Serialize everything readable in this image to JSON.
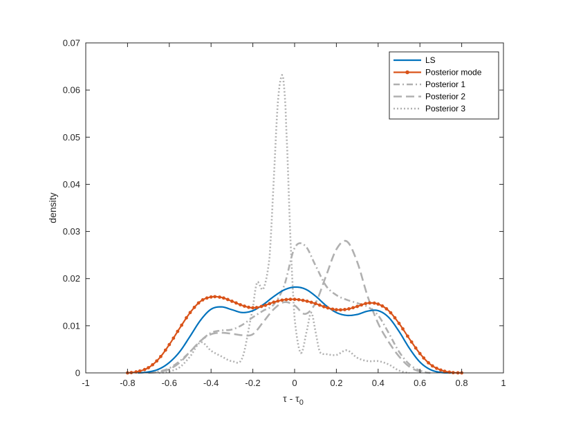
{
  "chart_data": {
    "type": "line",
    "title": "",
    "xlabel": "τ - τ",
    "xlabel_sub": "0",
    "ylabel": "density",
    "xlim": [
      -1,
      1
    ],
    "ylim": [
      0,
      0.07
    ],
    "xticks": [
      -1,
      -0.8,
      -0.6,
      -0.4,
      -0.2,
      0,
      0.2,
      0.4,
      0.6,
      0.8,
      1
    ],
    "xtick_labels": [
      "-1",
      "-0.8",
      "-0.6",
      "-0.4",
      "-0.2",
      "0",
      "0.2",
      "0.4",
      "0.6",
      "0.8",
      "1"
    ],
    "yticks": [
      0,
      0.01,
      0.02,
      0.03,
      0.04,
      0.05,
      0.06,
      0.07
    ],
    "ytick_labels": [
      "0",
      "0.01",
      "0.02",
      "0.03",
      "0.04",
      "0.05",
      "0.06",
      "0.07"
    ],
    "grid": false,
    "legend_position": "top-right",
    "series": [
      {
        "name": "LS",
        "color": "#0072BD",
        "style": "solid",
        "x": [
          -0.75,
          -0.7,
          -0.65,
          -0.6,
          -0.55,
          -0.5,
          -0.45,
          -0.4,
          -0.35,
          -0.3,
          -0.25,
          -0.2,
          -0.15,
          -0.1,
          -0.05,
          0,
          0.05,
          0.1,
          0.15,
          0.2,
          0.25,
          0.3,
          0.35,
          0.4,
          0.45,
          0.5,
          0.55,
          0.6,
          0.65,
          0.7,
          0.75
        ],
        "y": [
          0,
          0.0002,
          0.0008,
          0.0022,
          0.0045,
          0.0078,
          0.0112,
          0.0135,
          0.014,
          0.0134,
          0.0128,
          0.0132,
          0.0145,
          0.0162,
          0.0176,
          0.0182,
          0.0178,
          0.0163,
          0.0143,
          0.0128,
          0.0122,
          0.0124,
          0.0131,
          0.0132,
          0.0118,
          0.0088,
          0.0052,
          0.0023,
          0.0007,
          0.0001,
          0
        ]
      },
      {
        "name": "Posterior mode",
        "color": "#D95319",
        "style": "solid-markers",
        "x": [
          -0.8,
          -0.75,
          -0.7,
          -0.65,
          -0.6,
          -0.55,
          -0.5,
          -0.45,
          -0.4,
          -0.35,
          -0.3,
          -0.25,
          -0.2,
          -0.15,
          -0.1,
          -0.05,
          0,
          0.05,
          0.1,
          0.15,
          0.2,
          0.25,
          0.3,
          0.35,
          0.4,
          0.45,
          0.5,
          0.55,
          0.6,
          0.65,
          0.7,
          0.75,
          0.8
        ],
        "y": [
          0,
          0.0003,
          0.0011,
          0.003,
          0.006,
          0.0095,
          0.0128,
          0.0152,
          0.0161,
          0.016,
          0.0152,
          0.0143,
          0.0138,
          0.0142,
          0.015,
          0.0155,
          0.0156,
          0.0153,
          0.0147,
          0.0139,
          0.0134,
          0.0135,
          0.0141,
          0.0148,
          0.0146,
          0.0132,
          0.0105,
          0.0072,
          0.0041,
          0.0018,
          0.0006,
          0.0001,
          0
        ]
      },
      {
        "name": "Posterior 1",
        "color": "#B0B0B0",
        "style": "dashdot",
        "x": [
          -0.7,
          -0.65,
          -0.6,
          -0.55,
          -0.5,
          -0.45,
          -0.4,
          -0.35,
          -0.3,
          -0.25,
          -0.2,
          -0.15,
          -0.1,
          -0.05,
          0,
          0.05,
          0.1,
          0.15,
          0.2,
          0.25,
          0.3,
          0.35,
          0.4,
          0.45,
          0.5,
          0.55,
          0.6,
          0.65
        ],
        "y": [
          0,
          0.0003,
          0.001,
          0.0025,
          0.0045,
          0.0068,
          0.0085,
          0.009,
          0.0092,
          0.0102,
          0.0118,
          0.0132,
          0.0145,
          0.0185,
          0.0265,
          0.027,
          0.0228,
          0.0185,
          0.0165,
          0.0155,
          0.0148,
          0.014,
          0.0122,
          0.0085,
          0.0045,
          0.0018,
          0.0005,
          0
        ]
      },
      {
        "name": "Posterior 2",
        "color": "#B0B0B0",
        "style": "dashed",
        "x": [
          -0.7,
          -0.65,
          -0.6,
          -0.55,
          -0.5,
          -0.45,
          -0.4,
          -0.35,
          -0.3,
          -0.25,
          -0.2,
          -0.15,
          -0.1,
          -0.05,
          0,
          0.05,
          0.1,
          0.15,
          0.2,
          0.25,
          0.3,
          0.35,
          0.4,
          0.45,
          0.5,
          0.55,
          0.6,
          0.65
        ],
        "y": [
          0,
          0.0002,
          0.0008,
          0.0022,
          0.0045,
          0.0068,
          0.0082,
          0.0085,
          0.0083,
          0.008,
          0.0082,
          0.0108,
          0.0135,
          0.015,
          0.0143,
          0.0125,
          0.0148,
          0.0205,
          0.0262,
          0.0279,
          0.0235,
          0.0162,
          0.0105,
          0.0066,
          0.0035,
          0.0013,
          0.0003,
          0
        ]
      },
      {
        "name": "Posterior 3",
        "color": "#B0B0B0",
        "style": "dotted",
        "x": [
          -0.65,
          -0.6,
          -0.55,
          -0.5,
          -0.45,
          -0.4,
          -0.35,
          -0.3,
          -0.25,
          -0.2,
          -0.18,
          -0.15,
          -0.12,
          -0.1,
          -0.08,
          -0.06,
          -0.05,
          -0.04,
          -0.02,
          0,
          0.03,
          0.06,
          0.08,
          0.1,
          0.12,
          0.15,
          0.2,
          0.25,
          0.3,
          0.35,
          0.4,
          0.45,
          0.5,
          0.55
        ],
        "y": [
          0,
          0.0003,
          0.0012,
          0.0035,
          0.0065,
          0.0047,
          0.0035,
          0.0025,
          0.0032,
          0.0135,
          0.0192,
          0.0178,
          0.0245,
          0.0408,
          0.0575,
          0.0632,
          0.0605,
          0.052,
          0.0285,
          0.0115,
          0.0042,
          0.0092,
          0.0128,
          0.0088,
          0.0045,
          0.004,
          0.0038,
          0.0048,
          0.0032,
          0.0025,
          0.0025,
          0.0018,
          0.0005,
          0
        ]
      }
    ]
  }
}
